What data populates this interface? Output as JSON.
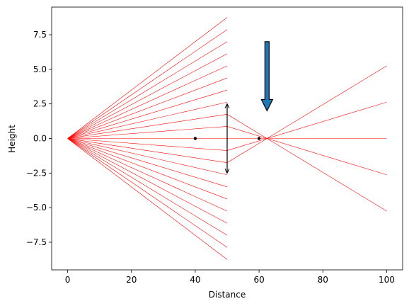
{
  "chart_data": {
    "type": "line",
    "title": "",
    "xlabel": "Distance",
    "ylabel": "Height",
    "xlim": [
      -5,
      105
    ],
    "ylim": [
      -9.5,
      9.5
    ],
    "xticks": [
      0,
      20,
      40,
      60,
      80,
      100
    ],
    "yticks": [
      -7.5,
      -5.0,
      -2.5,
      0.0,
      2.5,
      5.0,
      7.5
    ],
    "xtick_labels": [
      "0",
      "20",
      "40",
      "60",
      "80",
      "100"
    ],
    "ytick_labels": [
      "−7.5",
      "−5.0",
      "−2.5",
      "0.0",
      "2.5",
      "5.0",
      "7.5"
    ],
    "grid": false,
    "ray_color": "#ff0000",
    "rays_blocked": [
      {
        "x": [
          0,
          50
        ],
        "y": [
          0,
          8.75
        ]
      },
      {
        "x": [
          0,
          50
        ],
        "y": [
          0,
          7.875
        ]
      },
      {
        "x": [
          0,
          50
        ],
        "y": [
          0,
          7.0
        ]
      },
      {
        "x": [
          0,
          50
        ],
        "y": [
          0,
          6.125
        ]
      },
      {
        "x": [
          0,
          50
        ],
        "y": [
          0,
          5.25
        ]
      },
      {
        "x": [
          0,
          50
        ],
        "y": [
          0,
          4.375
        ]
      },
      {
        "x": [
          0,
          50
        ],
        "y": [
          0,
          3.5
        ]
      },
      {
        "x": [
          0,
          50
        ],
        "y": [
          0,
          2.625
        ]
      },
      {
        "x": [
          0,
          50
        ],
        "y": [
          0,
          -2.625
        ]
      },
      {
        "x": [
          0,
          50
        ],
        "y": [
          0,
          -3.5
        ]
      },
      {
        "x": [
          0,
          50
        ],
        "y": [
          0,
          -4.375
        ]
      },
      {
        "x": [
          0,
          50
        ],
        "y": [
          0,
          -5.25
        ]
      },
      {
        "x": [
          0,
          50
        ],
        "y": [
          0,
          -6.125
        ]
      },
      {
        "x": [
          0,
          50
        ],
        "y": [
          0,
          -7.0
        ]
      },
      {
        "x": [
          0,
          50
        ],
        "y": [
          0,
          -7.875
        ]
      },
      {
        "x": [
          0,
          50
        ],
        "y": [
          0,
          -8.75
        ]
      }
    ],
    "rays_through_lens": [
      {
        "x": [
          0,
          50,
          100
        ],
        "y": [
          0,
          1.75,
          -5.25
        ]
      },
      {
        "x": [
          0,
          50,
          100
        ],
        "y": [
          0,
          0.875,
          -2.625
        ]
      },
      {
        "x": [
          0,
          50,
          100
        ],
        "y": [
          0,
          0.0,
          0.0
        ]
      },
      {
        "x": [
          0,
          50,
          100
        ],
        "y": [
          0,
          -0.875,
          2.625
        ]
      },
      {
        "x": [
          0,
          50,
          100
        ],
        "y": [
          0,
          -1.75,
          5.25
        ]
      }
    ],
    "lens": {
      "x": 50,
      "y_top": 2.5,
      "y_bottom": -2.5,
      "color": "#000000"
    },
    "focal_points": [
      {
        "x": 40,
        "y": 0,
        "color": "#000000"
      },
      {
        "x": 60,
        "y": 0,
        "color": "#000000"
      }
    ],
    "image_arrow": {
      "x": 62.5,
      "y_start": 7.0,
      "y_end": 2.0,
      "fill": "#1f77b4",
      "edge": "#000000"
    }
  }
}
